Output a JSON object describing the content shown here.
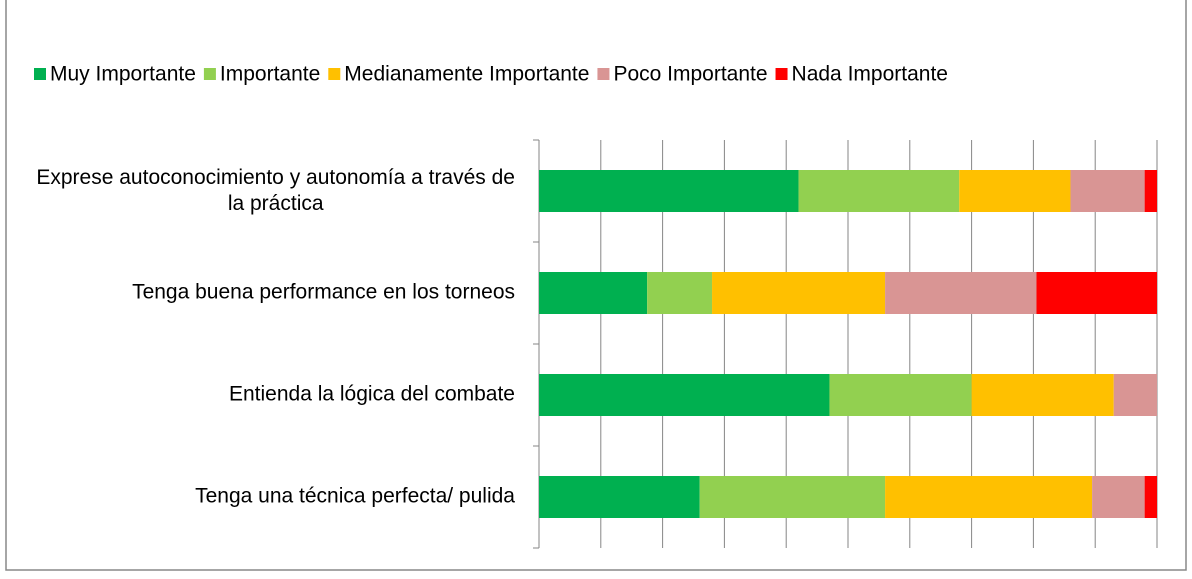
{
  "chart_data": {
    "type": "stacked_barh",
    "categories": [
      "Exprese autoconocimiento y autonomía a través de la práctica",
      "Tenga buena performance en los torneos",
      "Entienda la lógica del combate",
      "Tenga una técnica perfecta/ pulida"
    ],
    "series": [
      {
        "name": "Muy Importante",
        "color": "#00b050",
        "values": [
          42,
          17.5,
          47,
          26
        ]
      },
      {
        "name": "Importante",
        "color": "#92d050",
        "values": [
          26,
          10.5,
          23,
          30
        ]
      },
      {
        "name": "Medianamente Importante",
        "color": "#ffc000",
        "values": [
          18,
          28,
          23,
          33.5
        ]
      },
      {
        "name": "Poco Importante",
        "color": "#d99594",
        "values": [
          12,
          24.5,
          7,
          8.5
        ]
      },
      {
        "name": "Nada Importante",
        "color": "#ff0000",
        "values": [
          2,
          19.5,
          0,
          2
        ]
      }
    ],
    "xlim": [
      0,
      100
    ],
    "xticks": [
      0,
      10,
      20,
      30,
      40,
      50,
      60,
      70,
      80,
      90,
      100
    ],
    "grid": true,
    "legend": "top"
  }
}
